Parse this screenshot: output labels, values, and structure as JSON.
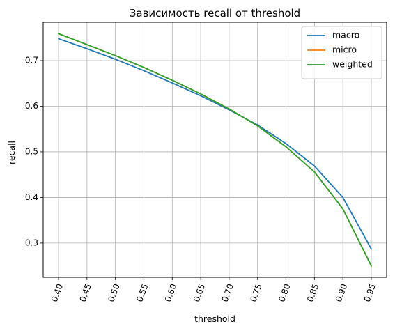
{
  "chart_data": {
    "type": "line",
    "title": "Зависимость recall от threshold",
    "xlabel": "threshold",
    "ylabel": "recall",
    "x": [
      0.4,
      0.45,
      0.5,
      0.55,
      0.6,
      0.65,
      0.7,
      0.75,
      0.8,
      0.85,
      0.9,
      0.95
    ],
    "x_tick_labels": [
      "0.40",
      "0.45",
      "0.50",
      "0.55",
      "0.60",
      "0.65",
      "0.70",
      "0.75",
      "0.80",
      "0.85",
      "0.90",
      "0.95"
    ],
    "x_tick_rotation_deg": 70,
    "y_ticks": [
      0.3,
      0.4,
      0.5,
      0.6,
      0.7
    ],
    "y_tick_labels": [
      "0.3",
      "0.4",
      "0.5",
      "0.6",
      "0.7"
    ],
    "xlim": [
      0.373,
      0.977
    ],
    "ylim": [
      0.225,
      0.784
    ],
    "grid": true,
    "legend_position": "top-right",
    "series": [
      {
        "name": "macro",
        "color": "#1f77b4",
        "values": [
          0.748,
          0.726,
          0.703,
          0.678,
          0.651,
          0.623,
          0.592,
          0.559,
          0.518,
          0.469,
          0.4,
          0.287
        ]
      },
      {
        "name": "micro",
        "color": "#ff7f0e",
        "values": [
          0.759,
          0.735,
          0.711,
          0.685,
          0.657,
          0.627,
          0.594,
          0.557,
          0.511,
          0.456,
          0.375,
          0.25
        ]
      },
      {
        "name": "weighted",
        "color": "#2ca02c",
        "values": [
          0.759,
          0.735,
          0.711,
          0.685,
          0.657,
          0.627,
          0.594,
          0.557,
          0.511,
          0.456,
          0.375,
          0.25
        ]
      }
    ]
  }
}
